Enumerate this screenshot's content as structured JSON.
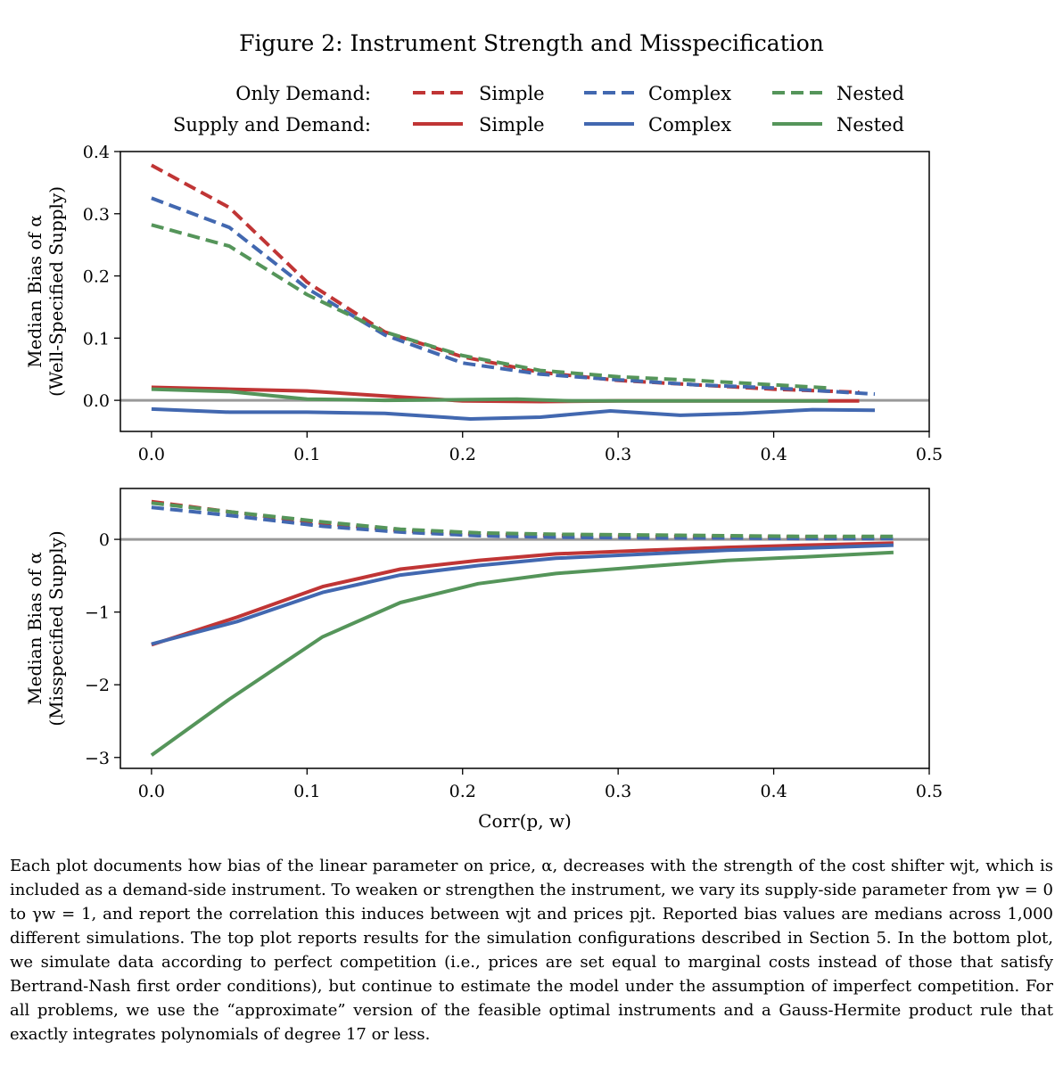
{
  "figure_title": "Figure 2: Instrument Strength and Misspecification",
  "legend": {
    "rows": [
      {
        "label": "Only Demand:",
        "style": "dashed"
      },
      {
        "label": "Supply and Demand:",
        "style": "solid"
      }
    ],
    "entries": [
      {
        "name": "Simple",
        "color": "#c03535"
      },
      {
        "name": "Complex",
        "color": "#4268b0"
      },
      {
        "name": "Nested",
        "color": "#55955a"
      }
    ]
  },
  "colors": {
    "simple": "#c03535",
    "complex": "#4268b0",
    "nested": "#55955a",
    "zero_line": "#999999"
  },
  "chart_data": [
    {
      "type": "line",
      "ylabel_line1": "Median Bias of α",
      "ylabel_line2": "(Well-Specified Supply)",
      "xlabel": "",
      "xlim": [
        -0.02,
        0.5
      ],
      "ylim": [
        -0.05,
        0.4
      ],
      "xticks": [
        0.0,
        0.1,
        0.2,
        0.3,
        0.4,
        0.5
      ],
      "xtick_labels": [
        "0.0",
        "0.1",
        "0.2",
        "0.3",
        "0.4",
        "0.5"
      ],
      "yticks": [
        0.0,
        0.1,
        0.2,
        0.3,
        0.4
      ],
      "ytick_labels": [
        "0.0",
        "0.1",
        "0.2",
        "0.3",
        "0.4"
      ],
      "series": [
        {
          "name": "Simple",
          "group": "Only Demand",
          "dash": true,
          "color": "#c03535",
          "x": [
            0.0,
            0.05,
            0.1,
            0.15,
            0.2,
            0.25,
            0.3,
            0.35,
            0.4,
            0.455
          ],
          "y": [
            0.378,
            0.31,
            0.19,
            0.11,
            0.07,
            0.045,
            0.032,
            0.025,
            0.018,
            0.013
          ]
        },
        {
          "name": "Complex",
          "group": "Only Demand",
          "dash": true,
          "color": "#4268b0",
          "x": [
            0.0,
            0.05,
            0.1,
            0.15,
            0.2,
            0.25,
            0.3,
            0.35,
            0.4,
            0.465
          ],
          "y": [
            0.325,
            0.278,
            0.18,
            0.105,
            0.06,
            0.042,
            0.033,
            0.025,
            0.02,
            0.01
          ]
        },
        {
          "name": "Nested",
          "group": "Only Demand",
          "dash": true,
          "color": "#55955a",
          "x": [
            0.0,
            0.05,
            0.1,
            0.15,
            0.2,
            0.25,
            0.3,
            0.35,
            0.4,
            0.435
          ],
          "y": [
            0.282,
            0.248,
            0.17,
            0.11,
            0.072,
            0.048,
            0.038,
            0.032,
            0.025,
            0.02
          ]
        },
        {
          "name": "Simple",
          "group": "Supply and Demand",
          "dash": false,
          "color": "#c03535",
          "x": [
            0.0,
            0.05,
            0.1,
            0.15,
            0.2,
            0.25,
            0.3,
            0.35,
            0.4,
            0.455
          ],
          "y": [
            0.021,
            0.018,
            0.015,
            0.007,
            -0.001,
            -0.002,
            -0.001,
            -0.001,
            -0.001,
            -0.001
          ]
        },
        {
          "name": "Complex",
          "group": "Supply and Demand",
          "dash": false,
          "color": "#4268b0",
          "x": [
            0.0,
            0.05,
            0.1,
            0.15,
            0.205,
            0.25,
            0.295,
            0.34,
            0.38,
            0.425,
            0.465
          ],
          "y": [
            -0.014,
            -0.019,
            -0.019,
            -0.021,
            -0.03,
            -0.027,
            -0.017,
            -0.024,
            -0.021,
            -0.015,
            -0.016
          ]
        },
        {
          "name": "Nested",
          "group": "Supply and Demand",
          "dash": false,
          "color": "#55955a",
          "x": [
            0.0,
            0.05,
            0.1,
            0.15,
            0.2,
            0.235,
            0.27,
            0.3,
            0.35,
            0.4,
            0.435
          ],
          "y": [
            0.018,
            0.014,
            0.002,
            0.0,
            0.001,
            0.002,
            -0.001,
            -0.001,
            -0.001,
            -0.001,
            -0.001
          ]
        }
      ]
    },
    {
      "type": "line",
      "ylabel_line1": "Median Bias of α",
      "ylabel_line2": "(Misspecified Supply)",
      "xlabel": "Corr(p, w)",
      "xlim": [
        -0.02,
        0.5
      ],
      "ylim": [
        -3.15,
        0.7
      ],
      "xticks": [
        0.0,
        0.1,
        0.2,
        0.3,
        0.4,
        0.5
      ],
      "xtick_labels": [
        "0.0",
        "0.1",
        "0.2",
        "0.3",
        "0.4",
        "0.5"
      ],
      "yticks": [
        -3,
        -2,
        -1,
        0
      ],
      "ytick_labels": [
        "−3",
        "−2",
        "−1",
        "0"
      ],
      "series": [
        {
          "name": "Simple",
          "group": "Only Demand",
          "dash": true,
          "color": "#c03535",
          "x": [
            0.0,
            0.05,
            0.11,
            0.16,
            0.21,
            0.26,
            0.32,
            0.37,
            0.42,
            0.477
          ],
          "y": [
            0.52,
            0.38,
            0.22,
            0.12,
            0.07,
            0.05,
            0.04,
            0.03,
            0.03,
            0.02
          ]
        },
        {
          "name": "Complex",
          "group": "Only Demand",
          "dash": true,
          "color": "#4268b0",
          "x": [
            0.0,
            0.05,
            0.11,
            0.16,
            0.21,
            0.26,
            0.32,
            0.37,
            0.42,
            0.477
          ],
          "y": [
            0.44,
            0.33,
            0.18,
            0.1,
            0.05,
            0.03,
            0.02,
            0.02,
            0.01,
            0.01
          ]
        },
        {
          "name": "Nested",
          "group": "Only Demand",
          "dash": true,
          "color": "#55955a",
          "x": [
            0.0,
            0.05,
            0.11,
            0.16,
            0.21,
            0.26,
            0.32,
            0.37,
            0.42,
            0.477
          ],
          "y": [
            0.5,
            0.38,
            0.24,
            0.14,
            0.09,
            0.07,
            0.06,
            0.05,
            0.04,
            0.04
          ]
        },
        {
          "name": "Simple",
          "group": "Supply and Demand",
          "dash": false,
          "color": "#c03535",
          "x": [
            0.0,
            0.055,
            0.11,
            0.16,
            0.21,
            0.26,
            0.32,
            0.37,
            0.42,
            0.477
          ],
          "y": [
            -1.45,
            -1.07,
            -0.65,
            -0.41,
            -0.29,
            -0.2,
            -0.15,
            -0.11,
            -0.08,
            -0.05
          ]
        },
        {
          "name": "Complex",
          "group": "Supply and Demand",
          "dash": false,
          "color": "#4268b0",
          "x": [
            0.0,
            0.055,
            0.11,
            0.16,
            0.21,
            0.26,
            0.32,
            0.37,
            0.42,
            0.477
          ],
          "y": [
            -1.44,
            -1.13,
            -0.73,
            -0.49,
            -0.36,
            -0.26,
            -0.2,
            -0.15,
            -0.12,
            -0.08
          ]
        },
        {
          "name": "Nested",
          "group": "Supply and Demand",
          "dash": false,
          "color": "#55955a",
          "x": [
            0.0,
            0.05,
            0.11,
            0.16,
            0.21,
            0.26,
            0.32,
            0.37,
            0.42,
            0.477
          ],
          "y": [
            -2.97,
            -2.2,
            -1.34,
            -0.87,
            -0.61,
            -0.47,
            -0.37,
            -0.29,
            -0.24,
            -0.18
          ]
        }
      ]
    }
  ],
  "caption": "Each plot documents how bias of the linear parameter on price, α, decreases with the strength of the cost shifter wjt, which is included as a demand-side instrument. To weaken or strengthen the instrument, we vary its supply-side parameter from γw = 0 to γw = 1, and report the correlation this induces between wjt and prices pjt. Reported bias values are medians across 1,000 different simulations. The top plot reports results for the simulation configurations described in Section 5. In the bottom plot, we simulate data according to perfect competition (i.e., prices are set equal to marginal costs instead of those that satisfy Bertrand-Nash first order conditions), but continue to estimate the model under the assumption of imperfect competition. For all problems, we use the “approximate” version of the feasible optimal instruments and a Gauss-Hermite product rule that exactly integrates polynomials of degree 17 or less."
}
